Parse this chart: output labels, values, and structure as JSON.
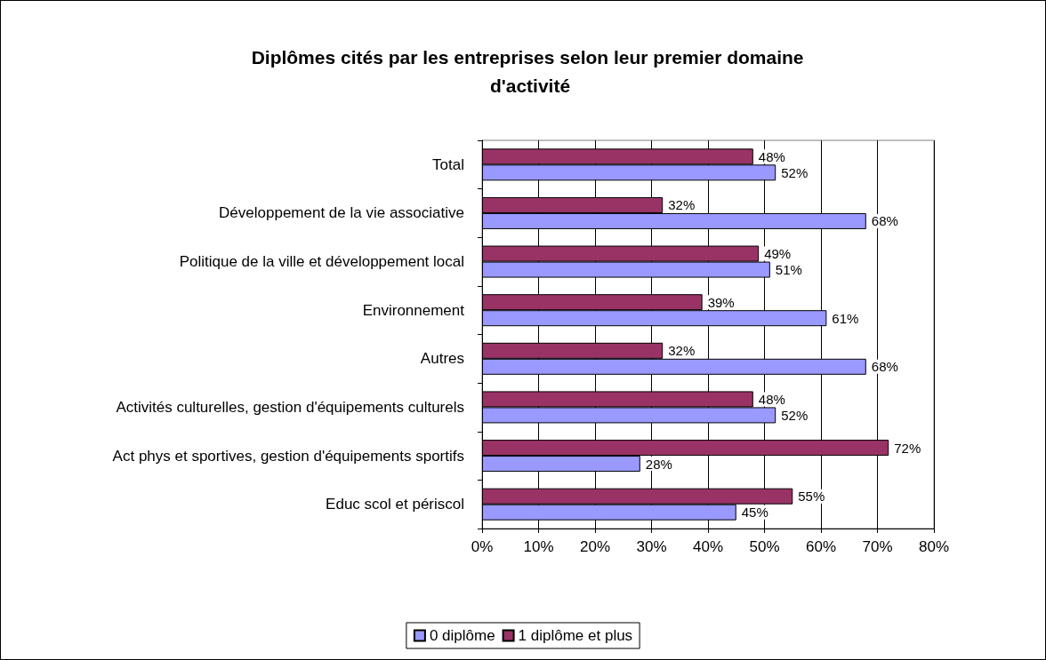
{
  "chart_data": {
    "type": "bar",
    "orientation": "horizontal",
    "title": "Diplômes cités par les entreprises selon leur premier domaine d'activité",
    "categories": [
      "Total",
      "Développement de la vie associative",
      "Politique de la ville et développement local",
      "Environnement",
      "Autres",
      "Activités culturelles, gestion d'équipements culturels",
      "Act phys et sportives, gestion d'équipements sportifs",
      "Educ scol et périscol"
    ],
    "series": [
      {
        "name": "0 diplôme",
        "color": "#9999ff",
        "values": [
          52,
          68,
          51,
          61,
          68,
          52,
          28,
          45
        ],
        "value_labels": [
          "52%",
          "68%",
          "51%",
          "61%",
          "68%",
          "52%",
          "28%",
          "45%"
        ]
      },
      {
        "name": "1 diplôme et plus",
        "color": "#993366",
        "values": [
          48,
          32,
          49,
          39,
          32,
          48,
          72,
          55
        ],
        "value_labels": [
          "48%",
          "32%",
          "49%",
          "39%",
          "32%",
          "48%",
          "72%",
          "55%"
        ]
      }
    ],
    "xlim": [
      0,
      80
    ],
    "xticks": [
      {
        "value": 0,
        "label": "0%"
      },
      {
        "value": 10,
        "label": "10%"
      },
      {
        "value": 20,
        "label": "20%"
      },
      {
        "value": 30,
        "label": "30%"
      },
      {
        "value": 40,
        "label": "40%"
      },
      {
        "value": 50,
        "label": "50%"
      },
      {
        "value": 60,
        "label": "60%"
      },
      {
        "value": 70,
        "label": "70%"
      },
      {
        "value": 80,
        "label": "80%"
      }
    ],
    "grid": "x",
    "legend": "bottom"
  }
}
